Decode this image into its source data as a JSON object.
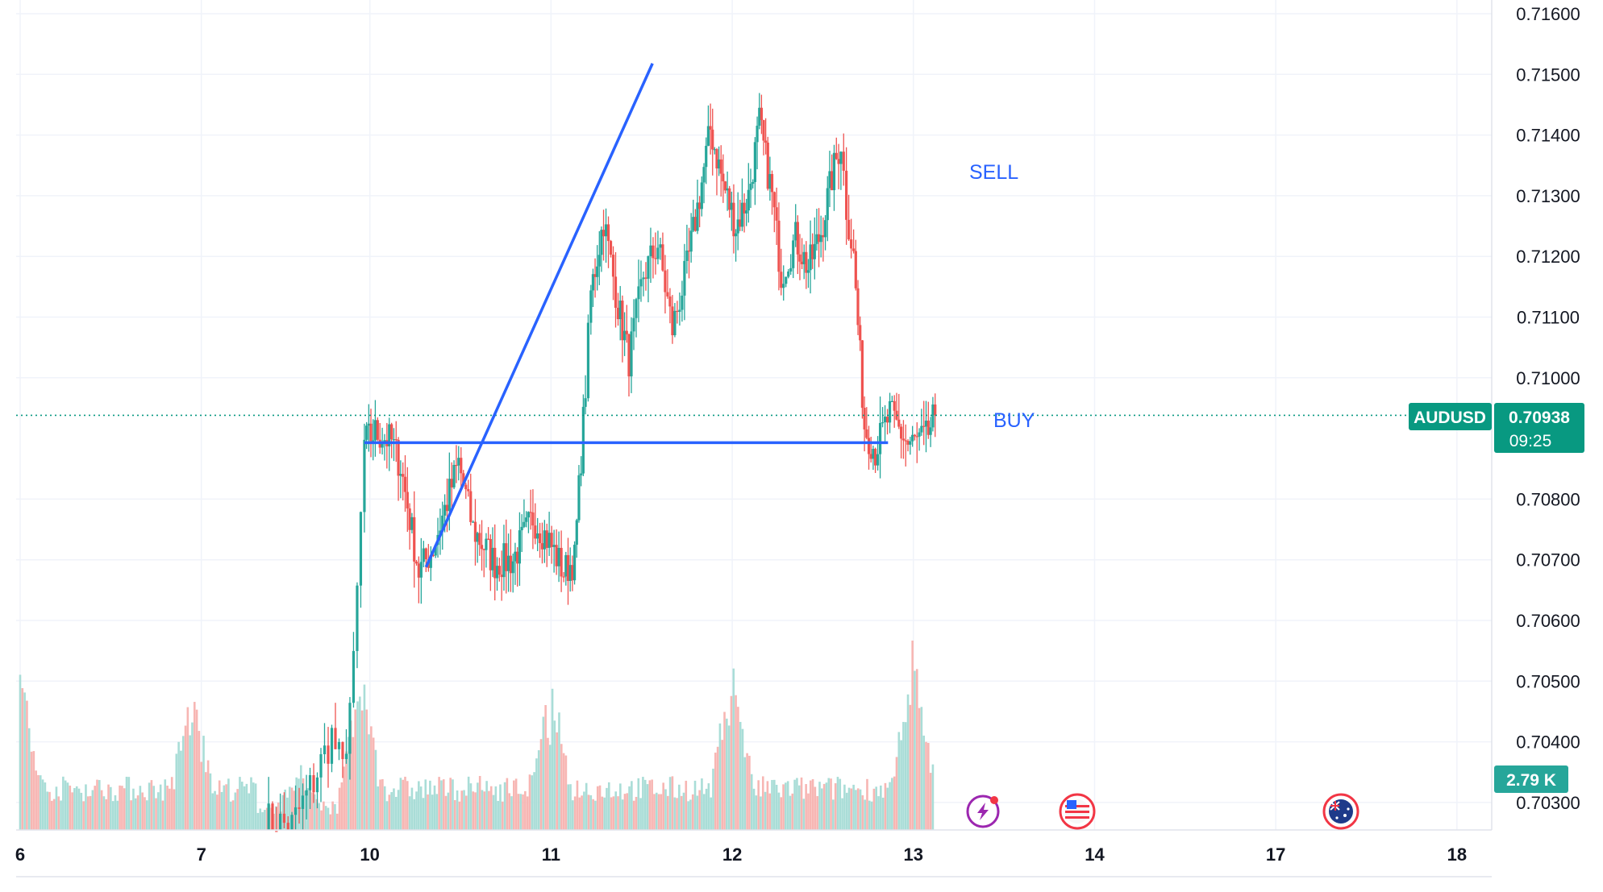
{
  "chart_data": {
    "type": "candlestick",
    "symbol": "AUDUSD",
    "last_price": 0.70938,
    "countdown": "09:25",
    "volume_label": "2.79 K",
    "ylim": [
      0.7025,
      0.7165
    ],
    "y_ticks": [
      "0.71600",
      "0.71500",
      "0.71400",
      "0.71300",
      "0.71200",
      "0.71100",
      "0.71000",
      "0.70800",
      "0.70700",
      "0.70600",
      "0.70500",
      "0.70400",
      "0.70300"
    ],
    "x_ticks": [
      "6",
      "7",
      "10",
      "11",
      "12",
      "13",
      "14",
      "17",
      "18"
    ],
    "x_range": [
      0,
      8
    ],
    "grid": true,
    "colors": {
      "up": "#26a69a",
      "down": "#ef5350",
      "line": "#2962ff",
      "price_badge": "#089981",
      "volume_up": "#a9ddd7",
      "volume_down": "#f7b6b3"
    },
    "drawings": [
      {
        "type": "trend_line",
        "label": "SELL",
        "from": [
          2.24,
          0.70688
        ],
        "to": [
          3.49,
          0.71518
        ]
      },
      {
        "type": "horizontal_line",
        "label": "BUY",
        "from": [
          1.9,
          0.70893
        ],
        "to": [
          4.79,
          0.70893
        ]
      }
    ],
    "anchors": [
      {
        "x": 1.9,
        "price": 0.70893
      },
      {
        "x": 1.96,
        "price": 0.7091
      },
      {
        "x": 2.05,
        "price": 0.70895
      },
      {
        "x": 2.1,
        "price": 0.70855
      },
      {
        "x": 2.2,
        "price": 0.7068
      },
      {
        "x": 2.28,
        "price": 0.7072
      },
      {
        "x": 2.42,
        "price": 0.7086
      },
      {
        "x": 2.5,
        "price": 0.7075
      },
      {
        "x": 2.62,
        "price": 0.70695
      },
      {
        "x": 2.72,
        "price": 0.707
      },
      {
        "x": 2.83,
        "price": 0.7077
      },
      {
        "x": 2.92,
        "price": 0.7073
      },
      {
        "x": 3.0,
        "price": 0.7068
      },
      {
        "x": 3.06,
        "price": 0.707
      },
      {
        "x": 3.12,
        "price": 0.70985
      },
      {
        "x": 3.15,
        "price": 0.7114
      },
      {
        "x": 3.22,
        "price": 0.7126
      },
      {
        "x": 3.3,
        "price": 0.7112
      },
      {
        "x": 3.36,
        "price": 0.7103
      },
      {
        "x": 3.44,
        "price": 0.7117
      },
      {
        "x": 3.52,
        "price": 0.7122
      },
      {
        "x": 3.6,
        "price": 0.7108
      },
      {
        "x": 3.68,
        "price": 0.7118
      },
      {
        "x": 3.75,
        "price": 0.713
      },
      {
        "x": 3.81,
        "price": 0.7141
      },
      {
        "x": 3.88,
        "price": 0.7132
      },
      {
        "x": 3.95,
        "price": 0.7125
      },
      {
        "x": 4.02,
        "price": 0.713
      },
      {
        "x": 4.08,
        "price": 0.7142
      },
      {
        "x": 4.15,
        "price": 0.713
      },
      {
        "x": 4.2,
        "price": 0.7117
      },
      {
        "x": 4.28,
        "price": 0.7123
      },
      {
        "x": 4.35,
        "price": 0.7118
      },
      {
        "x": 4.42,
        "price": 0.7124
      },
      {
        "x": 4.48,
        "price": 0.7133
      },
      {
        "x": 4.53,
        "price": 0.7139
      },
      {
        "x": 4.56,
        "price": 0.7128
      },
      {
        "x": 4.6,
        "price": 0.712
      },
      {
        "x": 4.66,
        "price": 0.7092
      },
      {
        "x": 4.72,
        "price": 0.7088
      },
      {
        "x": 4.8,
        "price": 0.7094
      },
      {
        "x": 4.9,
        "price": 0.7089
      },
      {
        "x": 5.0,
        "price": 0.709
      },
      {
        "x": 5.05,
        "price": 0.70938
      }
    ],
    "pre_anchors": [
      {
        "x": 1.35,
        "price": 0.7027
      },
      {
        "x": 1.5,
        "price": 0.70262
      },
      {
        "x": 1.62,
        "price": 0.70335
      },
      {
        "x": 1.72,
        "price": 0.7041
      },
      {
        "x": 1.78,
        "price": 0.7035
      },
      {
        "x": 1.84,
        "price": 0.7052
      },
      {
        "x": 1.9,
        "price": 0.70893
      }
    ]
  }
}
